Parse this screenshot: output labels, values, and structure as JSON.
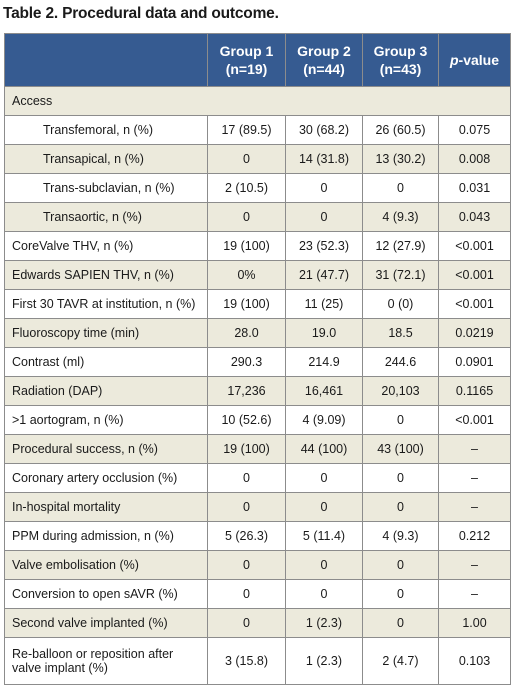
{
  "title": "Table 2. Procedural data and outcome.",
  "header": {
    "group1": "Group 1",
    "group1_n": "(n=19)",
    "group2": "Group 2",
    "group2_n": "(n=44)",
    "group3": "Group 3",
    "group3_n": "(n=43)",
    "pvalue_italic": "p",
    "pvalue_rest": "-value"
  },
  "section_access": "Access",
  "rows": [
    {
      "label": "Transfemoral, n (%)",
      "g1": "17 (89.5)",
      "g2": "30 (68.2)",
      "g3": "26 (60.5)",
      "p": "0.075"
    },
    {
      "label": "Transapical, n (%)",
      "g1": "0",
      "g2": "14 (31.8)",
      "g3": "13 (30.2)",
      "p": "0.008"
    },
    {
      "label": "Trans-subclavian, n (%)",
      "g1": "2 (10.5)",
      "g2": "0",
      "g3": "0",
      "p": "0.031"
    },
    {
      "label": "Transaortic, n (%)",
      "g1": "0",
      "g2": "0",
      "g3": "4 (9.3)",
      "p": "0.043"
    },
    {
      "label": "CoreValve THV, n (%)",
      "g1": "19 (100)",
      "g2": "23 (52.3)",
      "g3": "12 (27.9)",
      "p": "<0.001"
    },
    {
      "label": "Edwards SAPIEN THV, n (%)",
      "g1": "0%",
      "g2": "21 (47.7)",
      "g3": "31 (72.1)",
      "p": "<0.001"
    },
    {
      "label": "First 30 TAVR at institution, n (%)",
      "g1": "19 (100)",
      "g2": "11 (25)",
      "g3": "0 (0)",
      "p": "<0.001"
    },
    {
      "label": "Fluoroscopy time (min)",
      "g1": "28.0",
      "g2": "19.0",
      "g3": "18.5",
      "p": "0.0219"
    },
    {
      "label": "Contrast (ml)",
      "g1": "290.3",
      "g2": "214.9",
      "g3": "244.6",
      "p": "0.0901"
    },
    {
      "label": "Radiation (DAP)",
      "g1": "17,236",
      "g2": "16,461",
      "g3": "20,103",
      "p": "0.1165"
    },
    {
      "label": ">1 aortogram, n (%)",
      "g1": "10 (52.6)",
      "g2": "4 (9.09)",
      "g3": "0",
      "p": "<0.001"
    },
    {
      "label": "Procedural success, n (%)",
      "g1": "19 (100)",
      "g2": "44 (100)",
      "g3": "43 (100)",
      "p": "–"
    },
    {
      "label": "Coronary artery occlusion (%)",
      "g1": "0",
      "g2": "0",
      "g3": "0",
      "p": "–"
    },
    {
      "label": "In-hospital mortality",
      "g1": "0",
      "g2": "0",
      "g3": "0",
      "p": "–"
    },
    {
      "label": "PPM during admission, n (%)",
      "g1": "5 (26.3)",
      "g2": "5 (11.4)",
      "g3": "4 (9.3)",
      "p": "0.212"
    },
    {
      "label": "Valve embolisation (%)",
      "g1": "0",
      "g2": "0",
      "g3": "0",
      "p": "–"
    },
    {
      "label": "Conversion to open sAVR (%)",
      "g1": "0",
      "g2": "0",
      "g3": "0",
      "p": "–"
    },
    {
      "label": "Second valve implanted (%)",
      "g1": "0",
      "g2": "1 (2.3)",
      "g3": "0",
      "p": "1.00"
    },
    {
      "label": "Re-balloon or reposition after valve implant (%)",
      "g1": "3 (15.8)",
      "g2": "1 (2.3)",
      "g3": "2 (4.7)",
      "p": "0.103"
    }
  ]
}
